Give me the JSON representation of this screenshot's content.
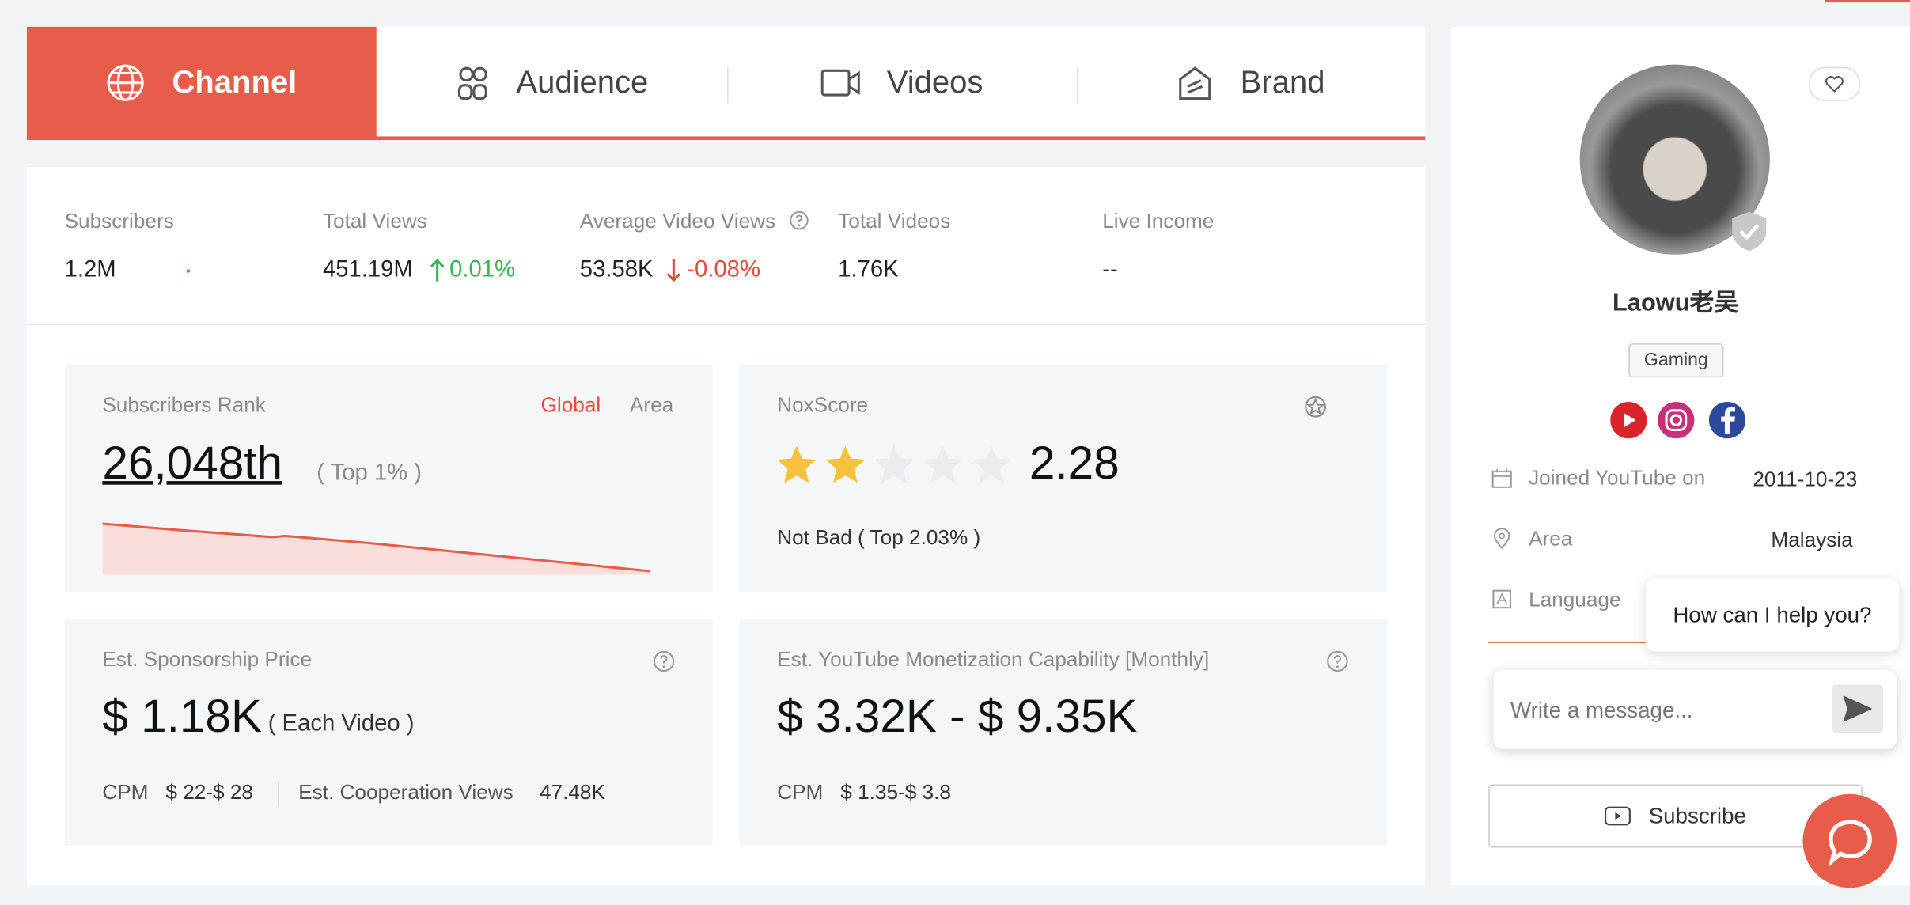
{
  "tabs": [
    "Channel",
    "Audience",
    "Videos",
    "Brand"
  ],
  "stats": [
    {
      "label": "Subscribers",
      "value": "1.2M"
    },
    {
      "label": "Total Views",
      "value": "451.19M",
      "change": "0.01%"
    },
    {
      "label": "Average Video Views",
      "value": "53.58K",
      "change": "-0.08%"
    },
    {
      "label": "Total Videos",
      "value": "1.76K"
    },
    {
      "label": "Live Income",
      "value": "--"
    }
  ],
  "rank": {
    "title": "Subscribers Rank",
    "toggles": [
      "Global",
      "Area"
    ],
    "value": "26,048th",
    "note": "( Top 1% )"
  },
  "noxscore": {
    "title": "NoxScore",
    "score": "2.28",
    "note": "Not Bad ( Top 2.03% )"
  },
  "sponsorship": {
    "title": "Est. Sponsorship Price",
    "price": "$ 1.18K",
    "unit": "( Each Video )",
    "cpm_label": "CPM",
    "cpm": "$ 22-$ 28",
    "views_label": "Est. Cooperation Views",
    "views": "47.48K"
  },
  "monetization": {
    "title": "Est. YouTube Monetization Capability [Monthly]",
    "range": "$ 3.32K - $ 9.35K",
    "cpm_label": "CPM",
    "cpm": "$ 1.35-$ 3.8"
  },
  "profile": {
    "name": "Laowu老吴",
    "tag": "Gaming",
    "details": [
      {
        "label": "Joined YouTube on",
        "value": "2011-10-23"
      },
      {
        "label": "Area",
        "value": "Malaysia"
      },
      {
        "label": "Language"
      }
    ],
    "subscribe": "Subscribe"
  },
  "chat": {
    "bubble": "How can I help you?",
    "placeholder": "Write a message..."
  }
}
